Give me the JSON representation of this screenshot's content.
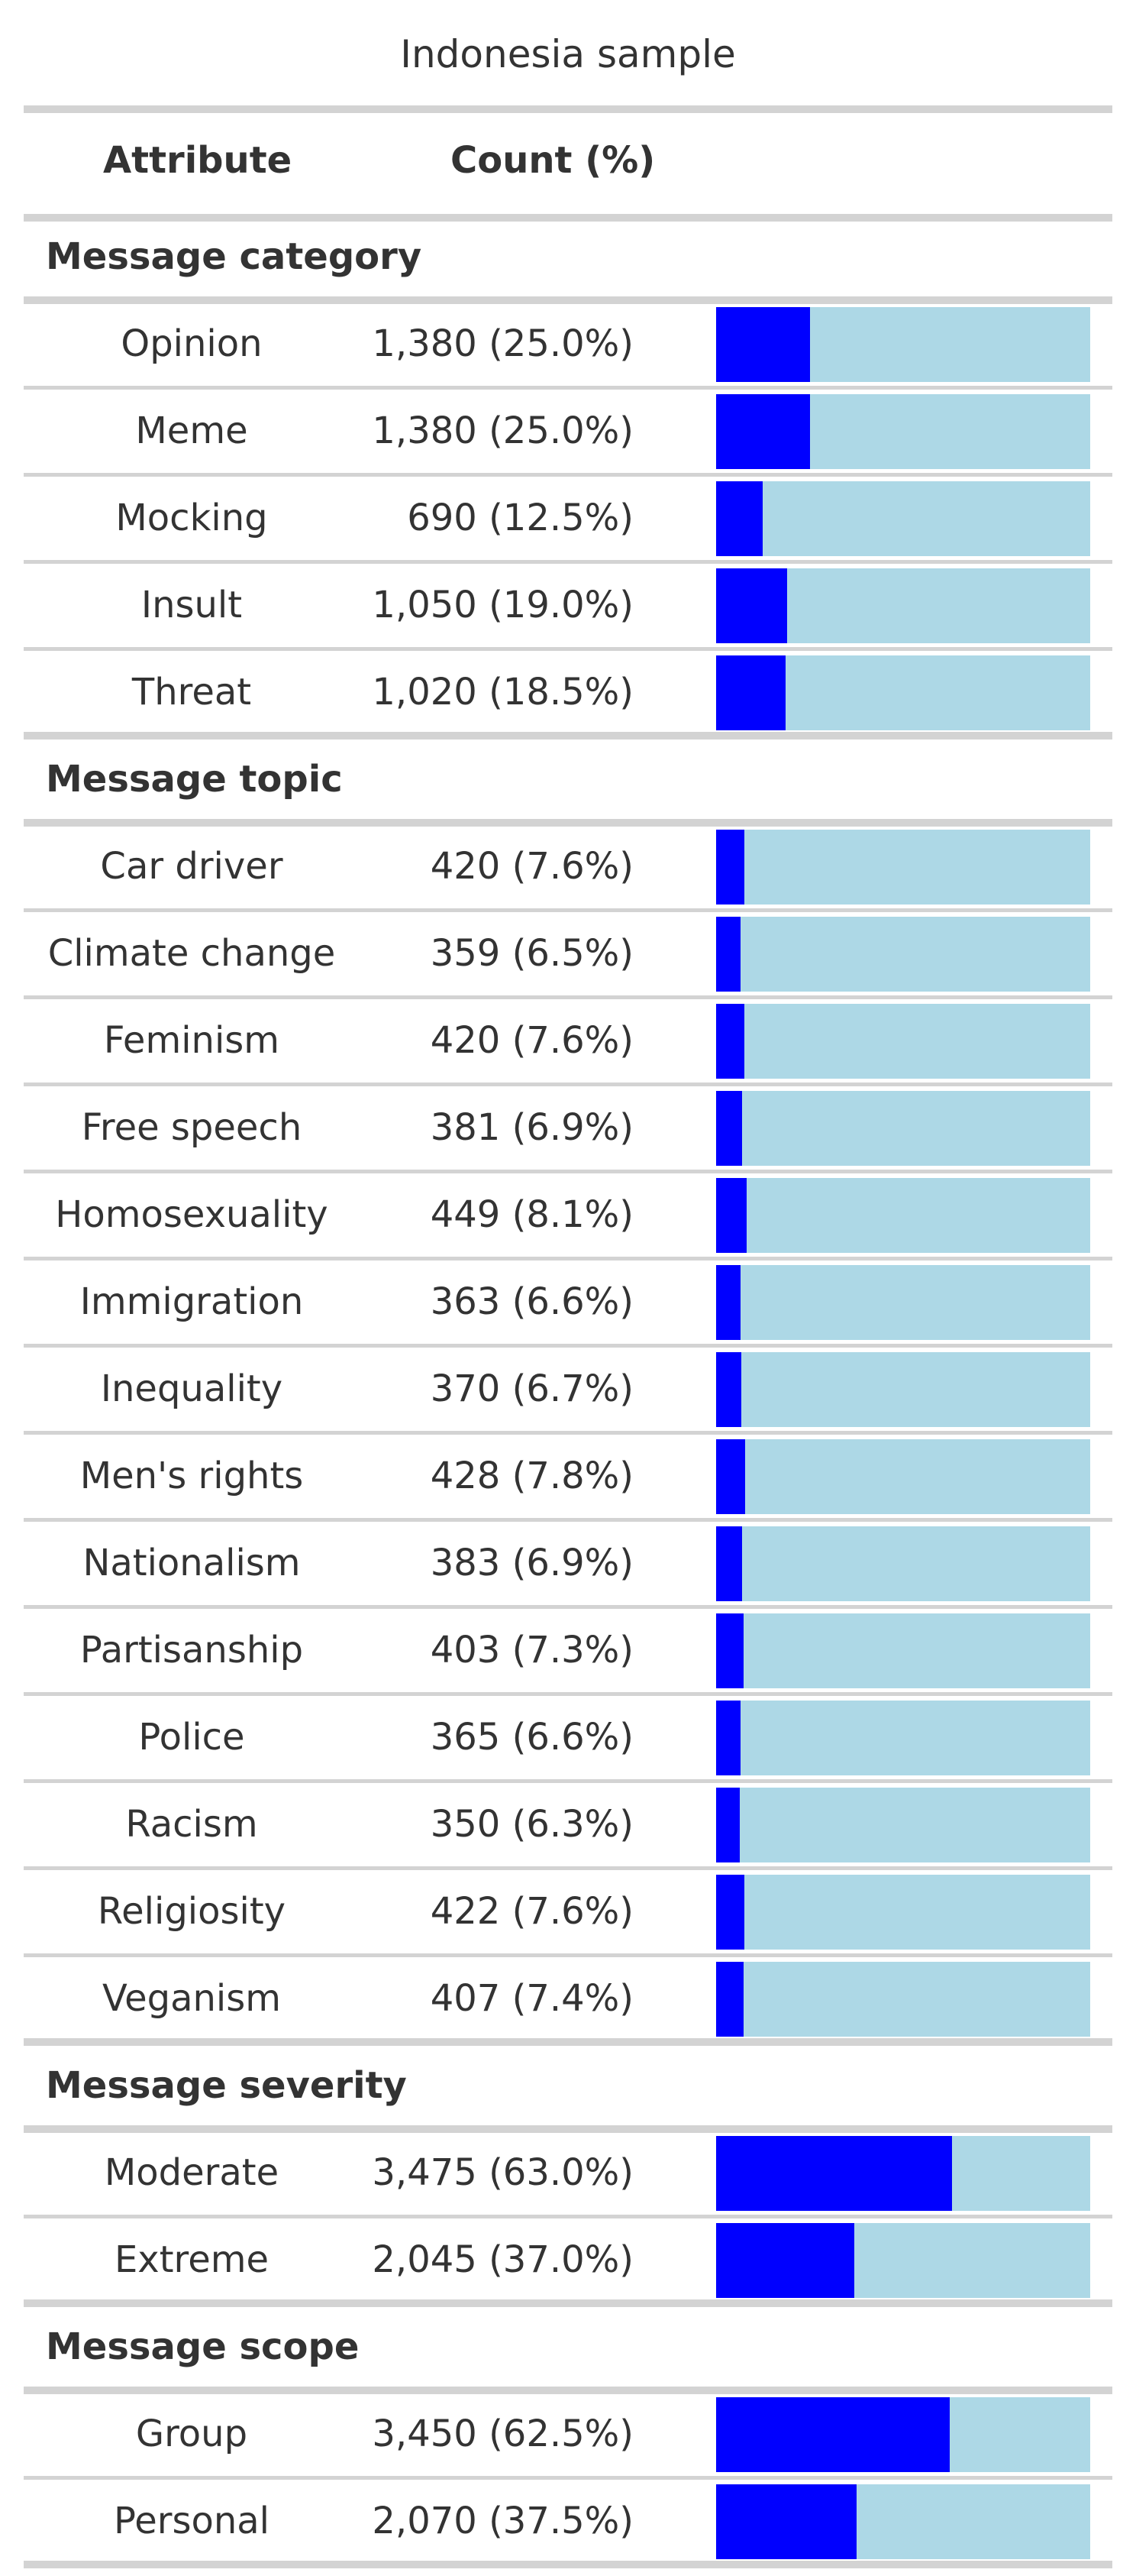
{
  "chart_data": {
    "type": "table",
    "title": "Indonesia sample",
    "columns": [
      "Attribute",
      "Count (%)",
      ""
    ],
    "bar_colors": {
      "filled": "#0000FF",
      "background": "#ADD8E6"
    },
    "groups": [
      {
        "label": "Message category",
        "rows": [
          {
            "attribute": "Opinion",
            "count": "1,380 (25.0%)",
            "share": 0.25
          },
          {
            "attribute": "Meme",
            "count": "1,380 (25.0%)",
            "share": 0.25
          },
          {
            "attribute": "Mocking",
            "count": "690 (12.5%)",
            "share": 0.125
          },
          {
            "attribute": "Insult",
            "count": "1,050 (19.0%)",
            "share": 0.19
          },
          {
            "attribute": "Threat",
            "count": "1,020 (18.5%)",
            "share": 0.185
          }
        ]
      },
      {
        "label": "Message topic",
        "rows": [
          {
            "attribute": "Car driver",
            "count": "420 (7.6%)",
            "share": 0.076
          },
          {
            "attribute": "Climate change",
            "count": "359 (6.5%)",
            "share": 0.065
          },
          {
            "attribute": "Feminism",
            "count": "420 (7.6%)",
            "share": 0.076
          },
          {
            "attribute": "Free speech",
            "count": "381 (6.9%)",
            "share": 0.069
          },
          {
            "attribute": "Homosexuality",
            "count": "449 (8.1%)",
            "share": 0.081
          },
          {
            "attribute": "Immigration",
            "count": "363 (6.6%)",
            "share": 0.066
          },
          {
            "attribute": "Inequality",
            "count": "370 (6.7%)",
            "share": 0.067
          },
          {
            "attribute": "Men's rights",
            "count": "428 (7.8%)",
            "share": 0.078
          },
          {
            "attribute": "Nationalism",
            "count": "383 (6.9%)",
            "share": 0.069
          },
          {
            "attribute": "Partisanship",
            "count": "403 (7.3%)",
            "share": 0.073
          },
          {
            "attribute": "Police",
            "count": "365 (6.6%)",
            "share": 0.066
          },
          {
            "attribute": "Racism",
            "count": "350 (6.3%)",
            "share": 0.063
          },
          {
            "attribute": "Religiosity",
            "count": "422 (7.6%)",
            "share": 0.076
          },
          {
            "attribute": "Veganism",
            "count": "407 (7.4%)",
            "share": 0.074
          }
        ]
      },
      {
        "label": "Message severity",
        "rows": [
          {
            "attribute": "Moderate",
            "count": "3,475 (63.0%)",
            "share": 0.63
          },
          {
            "attribute": "Extreme",
            "count": "2,045 (37.0%)",
            "share": 0.37
          }
        ]
      },
      {
        "label": "Message scope",
        "rows": [
          {
            "attribute": "Group",
            "count": "3,450 (62.5%)",
            "share": 0.625
          },
          {
            "attribute": "Personal",
            "count": "2,070 (37.5%)",
            "share": 0.375
          }
        ]
      }
    ]
  }
}
